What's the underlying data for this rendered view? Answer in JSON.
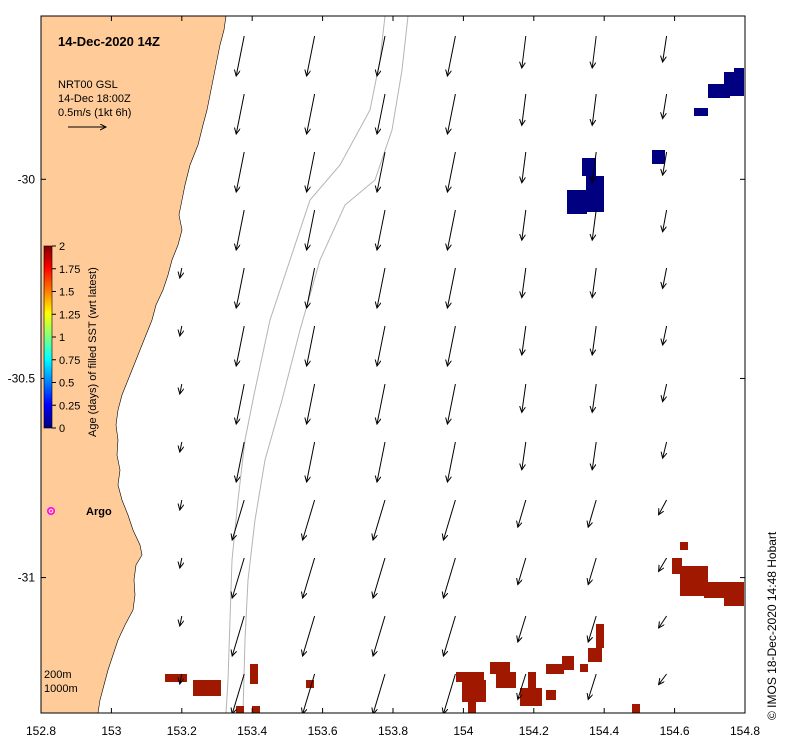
{
  "title": "14-Dec-2020 14Z",
  "legend": {
    "source": "NRT00 GSL",
    "time": "14-Dec 18:00Z",
    "scale": "0.5m/s (1kt 6h)"
  },
  "colorbar": {
    "label": "Age (days) of filled SST (wrt latest)",
    "ticks": [
      "2",
      "1.75",
      "1.5",
      "1.25",
      "1",
      "0.75",
      "0.5",
      "0.25",
      "0"
    ],
    "colors": [
      "#00007f",
      "#0000ff",
      "#007fff",
      "#00ffff",
      "#7fff7f",
      "#ffff00",
      "#ff7f00",
      "#ff0000",
      "#7f0000"
    ]
  },
  "argo_label": "Argo",
  "isobath_labels": [
    "200m",
    "1000m"
  ],
  "credit": "© IMOS 18-Dec-2020 14:48 Hobart",
  "colors": {
    "land": "#ffcc99",
    "sst_young": "#000080",
    "sst_old": "#a01800",
    "argo": "#ff00ff",
    "isobath": "#b4b4b4"
  },
  "chart_data": {
    "type": "map",
    "xlim": [
      152.8,
      154.8
    ],
    "ylim": [
      -31.34,
      -29.59
    ],
    "x_ticks": [
      "152.8",
      "153",
      "153.2",
      "153.4",
      "153.6",
      "153.8",
      "154",
      "154.2",
      "154.4",
      "154.6",
      "154.8"
    ],
    "y_ticks": [
      "-30",
      "-30.5",
      "-31"
    ],
    "x_tick_values": [
      152.8,
      153.0,
      153.2,
      153.4,
      153.6,
      153.8,
      154.0,
      154.2,
      154.4,
      154.6,
      154.8
    ],
    "y_tick_values": [
      -30.0,
      -30.5,
      -31.0
    ],
    "argo": {
      "lon": 152.83,
      "lat": -30.81
    },
    "current_arrow_columns": [
      153.4,
      153.6,
      153.8,
      154.0,
      154.2,
      154.4,
      154.6
    ]
  }
}
